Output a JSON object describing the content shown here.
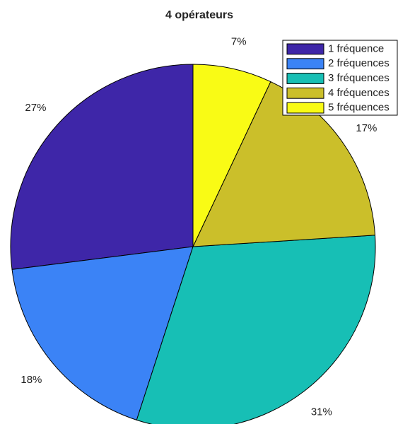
{
  "chart_data": {
    "type": "pie",
    "title": "4 opérateurs",
    "categories": [
      "1 fréquence",
      "2 fréquences",
      "3 fréquences",
      "4 fréquences",
      "5 fréquences"
    ],
    "values": [
      27,
      18,
      31,
      17,
      7
    ],
    "value_labels": [
      "27%",
      "18%",
      "31%",
      "17%",
      "7%"
    ],
    "colors": [
      "#3e26a8",
      "#3b83f6",
      "#17bfb5",
      "#cbbf2a",
      "#f9fb15"
    ],
    "legend": "top-right"
  }
}
